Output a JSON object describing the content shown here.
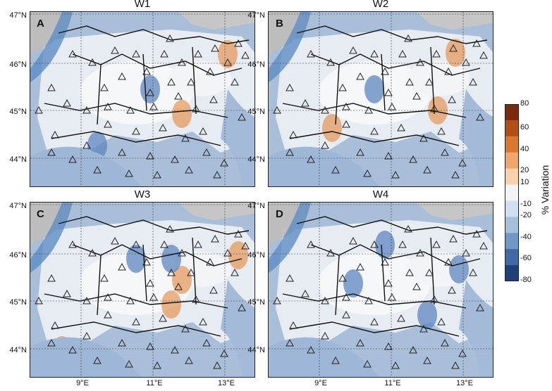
{
  "panels": [
    {
      "title": "W1",
      "label": "A"
    },
    {
      "title": "W2",
      "label": "B"
    },
    {
      "title": "W3",
      "label": "C"
    },
    {
      "title": "W4",
      "label": "D"
    }
  ],
  "lat_labels": [
    "47°N",
    "46°N",
    "45°N",
    "44°N"
  ],
  "lon_labels": [
    "9°E",
    "11°E",
    "13°E"
  ],
  "colorbar": {
    "title": "% Variation",
    "ticks": [
      "80",
      "60",
      "40",
      "20",
      "10",
      "-10",
      "-20",
      "-40",
      "-60",
      "-80"
    ],
    "colors": [
      "#7b2a0e",
      "#b24f17",
      "#d9782f",
      "#efa56b",
      "#f7d2ad",
      "#f4f4f4",
      "#d2dff0",
      "#a6bfdc",
      "#7097c6",
      "#3f6aa6",
      "#1f3f78"
    ]
  }
}
